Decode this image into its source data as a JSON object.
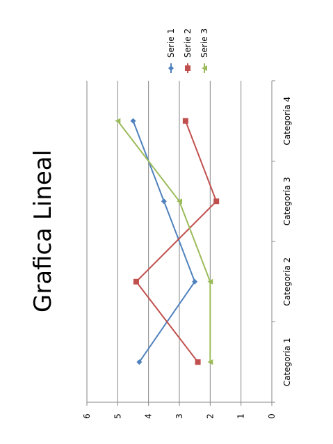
{
  "chart_data": {
    "type": "line",
    "title": "Grafica Lineal",
    "categories": [
      "Categoría 1",
      "Categoría 2",
      "Categoría 3",
      "Categoría 4"
    ],
    "ylim": [
      0,
      6
    ],
    "yticks": [
      0,
      1,
      2,
      3,
      4,
      5,
      6
    ],
    "grid": true,
    "legend_position": "top-right",
    "orientation": "rotated-90-clockwise",
    "series": [
      {
        "name": "Serie 1",
        "values": [
          4.3,
          2.5,
          3.5,
          4.5
        ],
        "color": "#4F81BD",
        "marker": "diamond"
      },
      {
        "name": "Serie 2",
        "values": [
          2.4,
          4.4,
          1.8,
          2.8
        ],
        "color": "#C0504D",
        "marker": "square"
      },
      {
        "name": "Serie 3",
        "values": [
          2.0,
          2.0,
          3.0,
          5.0
        ],
        "color": "#9BBB59",
        "marker": "triangle"
      }
    ]
  }
}
